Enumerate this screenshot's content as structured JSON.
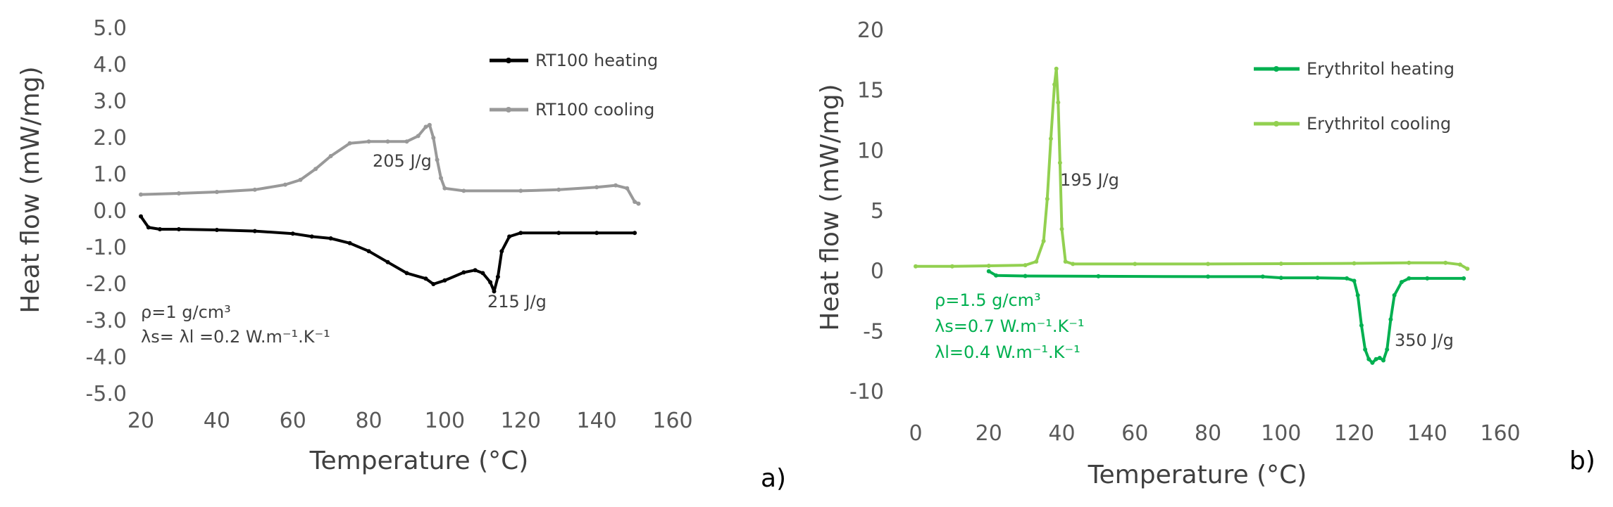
{
  "chart_data": [
    {
      "type": "line",
      "panel_label": "a)",
      "xlabel": "Temperature (°C)",
      "ylabel": "Heat flow (mW/mg)",
      "xlim": [
        20,
        160
      ],
      "ylim": [
        -5.0,
        5.0
      ],
      "xticks": [
        "20",
        "40",
        "60",
        "80",
        "100",
        "120",
        "140",
        "160"
      ],
      "yticks": [
        "-5.0",
        "-4.0",
        "-3.0",
        "-2.0",
        "-1.0",
        "0.0",
        "1.0",
        "2.0",
        "3.0",
        "4.0",
        "5.0"
      ],
      "legend_position": "top-right",
      "series": [
        {
          "name": "RT100 heating",
          "color": "#000000",
          "points": [
            [
              20,
              -0.15
            ],
            [
              22,
              -0.45
            ],
            [
              25,
              -0.5
            ],
            [
              30,
              -0.5
            ],
            [
              40,
              -0.52
            ],
            [
              50,
              -0.55
            ],
            [
              60,
              -0.62
            ],
            [
              65,
              -0.7
            ],
            [
              70,
              -0.75
            ],
            [
              75,
              -0.88
            ],
            [
              80,
              -1.1
            ],
            [
              85,
              -1.4
            ],
            [
              90,
              -1.7
            ],
            [
              95,
              -1.85
            ],
            [
              97,
              -2.0
            ],
            [
              100,
              -1.9
            ],
            [
              105,
              -1.68
            ],
            [
              108,
              -1.62
            ],
            [
              110,
              -1.7
            ],
            [
              112,
              -1.95
            ],
            [
              113,
              -2.2
            ],
            [
              114,
              -1.8
            ],
            [
              115,
              -1.1
            ],
            [
              117,
              -0.7
            ],
            [
              120,
              -0.6
            ],
            [
              130,
              -0.6
            ],
            [
              140,
              -0.6
            ],
            [
              150,
              -0.6
            ]
          ]
        },
        {
          "name": "RT100 cooling",
          "color": "#999999",
          "points": [
            [
              20,
              0.45
            ],
            [
              30,
              0.48
            ],
            [
              40,
              0.52
            ],
            [
              50,
              0.58
            ],
            [
              58,
              0.72
            ],
            [
              62,
              0.85
            ],
            [
              66,
              1.15
            ],
            [
              70,
              1.5
            ],
            [
              75,
              1.85
            ],
            [
              80,
              1.9
            ],
            [
              85,
              1.9
            ],
            [
              90,
              1.9
            ],
            [
              93,
              2.05
            ],
            [
              95,
              2.3
            ],
            [
              96,
              2.35
            ],
            [
              97,
              2.0
            ],
            [
              98,
              1.4
            ],
            [
              99,
              0.9
            ],
            [
              100,
              0.62
            ],
            [
              105,
              0.55
            ],
            [
              120,
              0.55
            ],
            [
              130,
              0.58
            ],
            [
              140,
              0.65
            ],
            [
              145,
              0.7
            ],
            [
              148,
              0.62
            ],
            [
              150,
              0.25
            ],
            [
              151,
              0.2
            ]
          ]
        }
      ],
      "annotations": [
        {
          "text": "205 J/g",
          "x": 81,
          "y": 1.0
        },
        {
          "text": "215 J/g",
          "x": 107,
          "y": -3.0
        }
      ],
      "properties": [
        "ρ=1 g/cm³",
        "λs= λl =0.2 W.m⁻¹.K⁻¹"
      ]
    },
    {
      "type": "line",
      "panel_label": "b)",
      "xlabel": "Temperature (°C)",
      "ylabel": "Heat flow (mW/mg)",
      "xlim": [
        0,
        160
      ],
      "ylim": [
        -10,
        20
      ],
      "xticks": [
        "0",
        "20",
        "40",
        "60",
        "80",
        "100",
        "120",
        "140",
        "160"
      ],
      "yticks": [
        "-10",
        "-5",
        "0",
        "5",
        "10",
        "15",
        "20"
      ],
      "legend_position": "top-right",
      "series": [
        {
          "name": "Erythritol heating",
          "color": "#00B050",
          "points": [
            [
              20,
              0.0
            ],
            [
              22,
              -0.35
            ],
            [
              30,
              -0.4
            ],
            [
              50,
              -0.42
            ],
            [
              80,
              -0.45
            ],
            [
              95,
              -0.45
            ],
            [
              100,
              -0.55
            ],
            [
              110,
              -0.55
            ],
            [
              118,
              -0.6
            ],
            [
              120,
              -0.8
            ],
            [
              121,
              -2.0
            ],
            [
              122,
              -4.5
            ],
            [
              123,
              -6.5
            ],
            [
              124,
              -7.3
            ],
            [
              125,
              -7.6
            ],
            [
              126,
              -7.3
            ],
            [
              127,
              -7.2
            ],
            [
              128,
              -7.4
            ],
            [
              129,
              -6.5
            ],
            [
              130,
              -4.0
            ],
            [
              131,
              -2.0
            ],
            [
              133,
              -0.9
            ],
            [
              135,
              -0.6
            ],
            [
              140,
              -0.6
            ],
            [
              150,
              -0.6
            ]
          ]
        },
        {
          "name": "Erythritol cooling",
          "color": "#92D050",
          "points": [
            [
              0,
              0.4
            ],
            [
              10,
              0.4
            ],
            [
              20,
              0.45
            ],
            [
              30,
              0.5
            ],
            [
              33,
              0.8
            ],
            [
              35,
              2.5
            ],
            [
              36,
              6.0
            ],
            [
              37,
              11.0
            ],
            [
              38,
              15.5
            ],
            [
              38.5,
              16.8
            ],
            [
              39,
              14.0
            ],
            [
              39.5,
              9.0
            ],
            [
              40,
              3.5
            ],
            [
              41,
              0.8
            ],
            [
              43,
              0.6
            ],
            [
              60,
              0.6
            ],
            [
              80,
              0.6
            ],
            [
              100,
              0.62
            ],
            [
              120,
              0.65
            ],
            [
              135,
              0.7
            ],
            [
              145,
              0.7
            ],
            [
              149,
              0.55
            ],
            [
              151,
              0.2
            ]
          ]
        }
      ],
      "annotations": [
        {
          "text": "195 J/g",
          "x": 40,
          "y": 7.2
        },
        {
          "text": "350 J/g",
          "x": 131,
          "y": -5.9
        }
      ],
      "properties": [
        "ρ=1.5 g/cm³",
        "λs=0.7 W.m⁻¹.K⁻¹",
        "λl=0.4 W.m⁻¹.K⁻¹"
      ]
    }
  ]
}
